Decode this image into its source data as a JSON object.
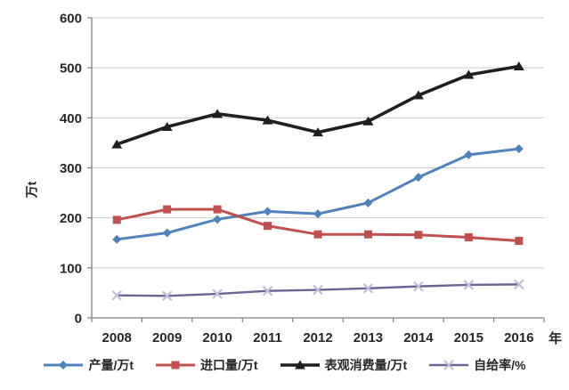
{
  "figure": {
    "title": "",
    "background_color": "#FFFFFF",
    "y_axis_unit_label": "万t",
    "x_axis_unit_label": "年"
  },
  "chart_data": {
    "type": "line",
    "title": "",
    "categories": [
      "2008",
      "2009",
      "2010",
      "2011",
      "2012",
      "2013",
      "2014",
      "2015",
      "2016"
    ],
    "x_axis": {
      "unit_label": "年",
      "tick_labels": [
        "2008",
        "2009",
        "2010",
        "2011",
        "2012",
        "2013",
        "2014",
        "2015",
        "2016"
      ]
    },
    "y_axis": {
      "unit_label": "万t",
      "min": 0,
      "max": 600,
      "tick_interval": 100,
      "tick_labels": [
        "0",
        "100",
        "200",
        "300",
        "400",
        "500",
        "600"
      ]
    },
    "grid": {
      "horizontal": true,
      "vertical": false,
      "color": "#C9C9C9"
    },
    "axis_color": "#808080",
    "tick_label_color": "#262626",
    "legend_position": "bottom",
    "series": [
      {
        "id": "production",
        "name": "产量/万t",
        "legend_label": "产量/万t",
        "marker": "diamond",
        "color": "#4F81BD",
        "marker_color": "#4F81BD",
        "values": [
          157,
          170,
          197,
          213,
          208,
          230,
          281,
          326,
          338
        ]
      },
      {
        "id": "imports",
        "name": "进口量/万t",
        "legend_label": "进口量/万t",
        "marker": "square",
        "color": "#C0504D",
        "marker_color": "#C0504D",
        "values": [
          196,
          217,
          217,
          184,
          167,
          167,
          166,
          161,
          154
        ]
      },
      {
        "id": "apparent-consumption",
        "name": "表观消费量/万t",
        "legend_label": "表观消费量/万t",
        "marker": "triangle",
        "color": "#1F1F1F",
        "marker_color": "#1F1F1F",
        "values": [
          347,
          382,
          408,
          395,
          371,
          393,
          445,
          486,
          503
        ]
      },
      {
        "id": "self-sufficiency",
        "name": "自给率/%",
        "legend_label": "自给率/%",
        "marker": "x",
        "color": "#6A6396",
        "marker_color": "#C3BCD8",
        "values": [
          45,
          44,
          48,
          54,
          56,
          59,
          63,
          66,
          67
        ]
      }
    ]
  }
}
